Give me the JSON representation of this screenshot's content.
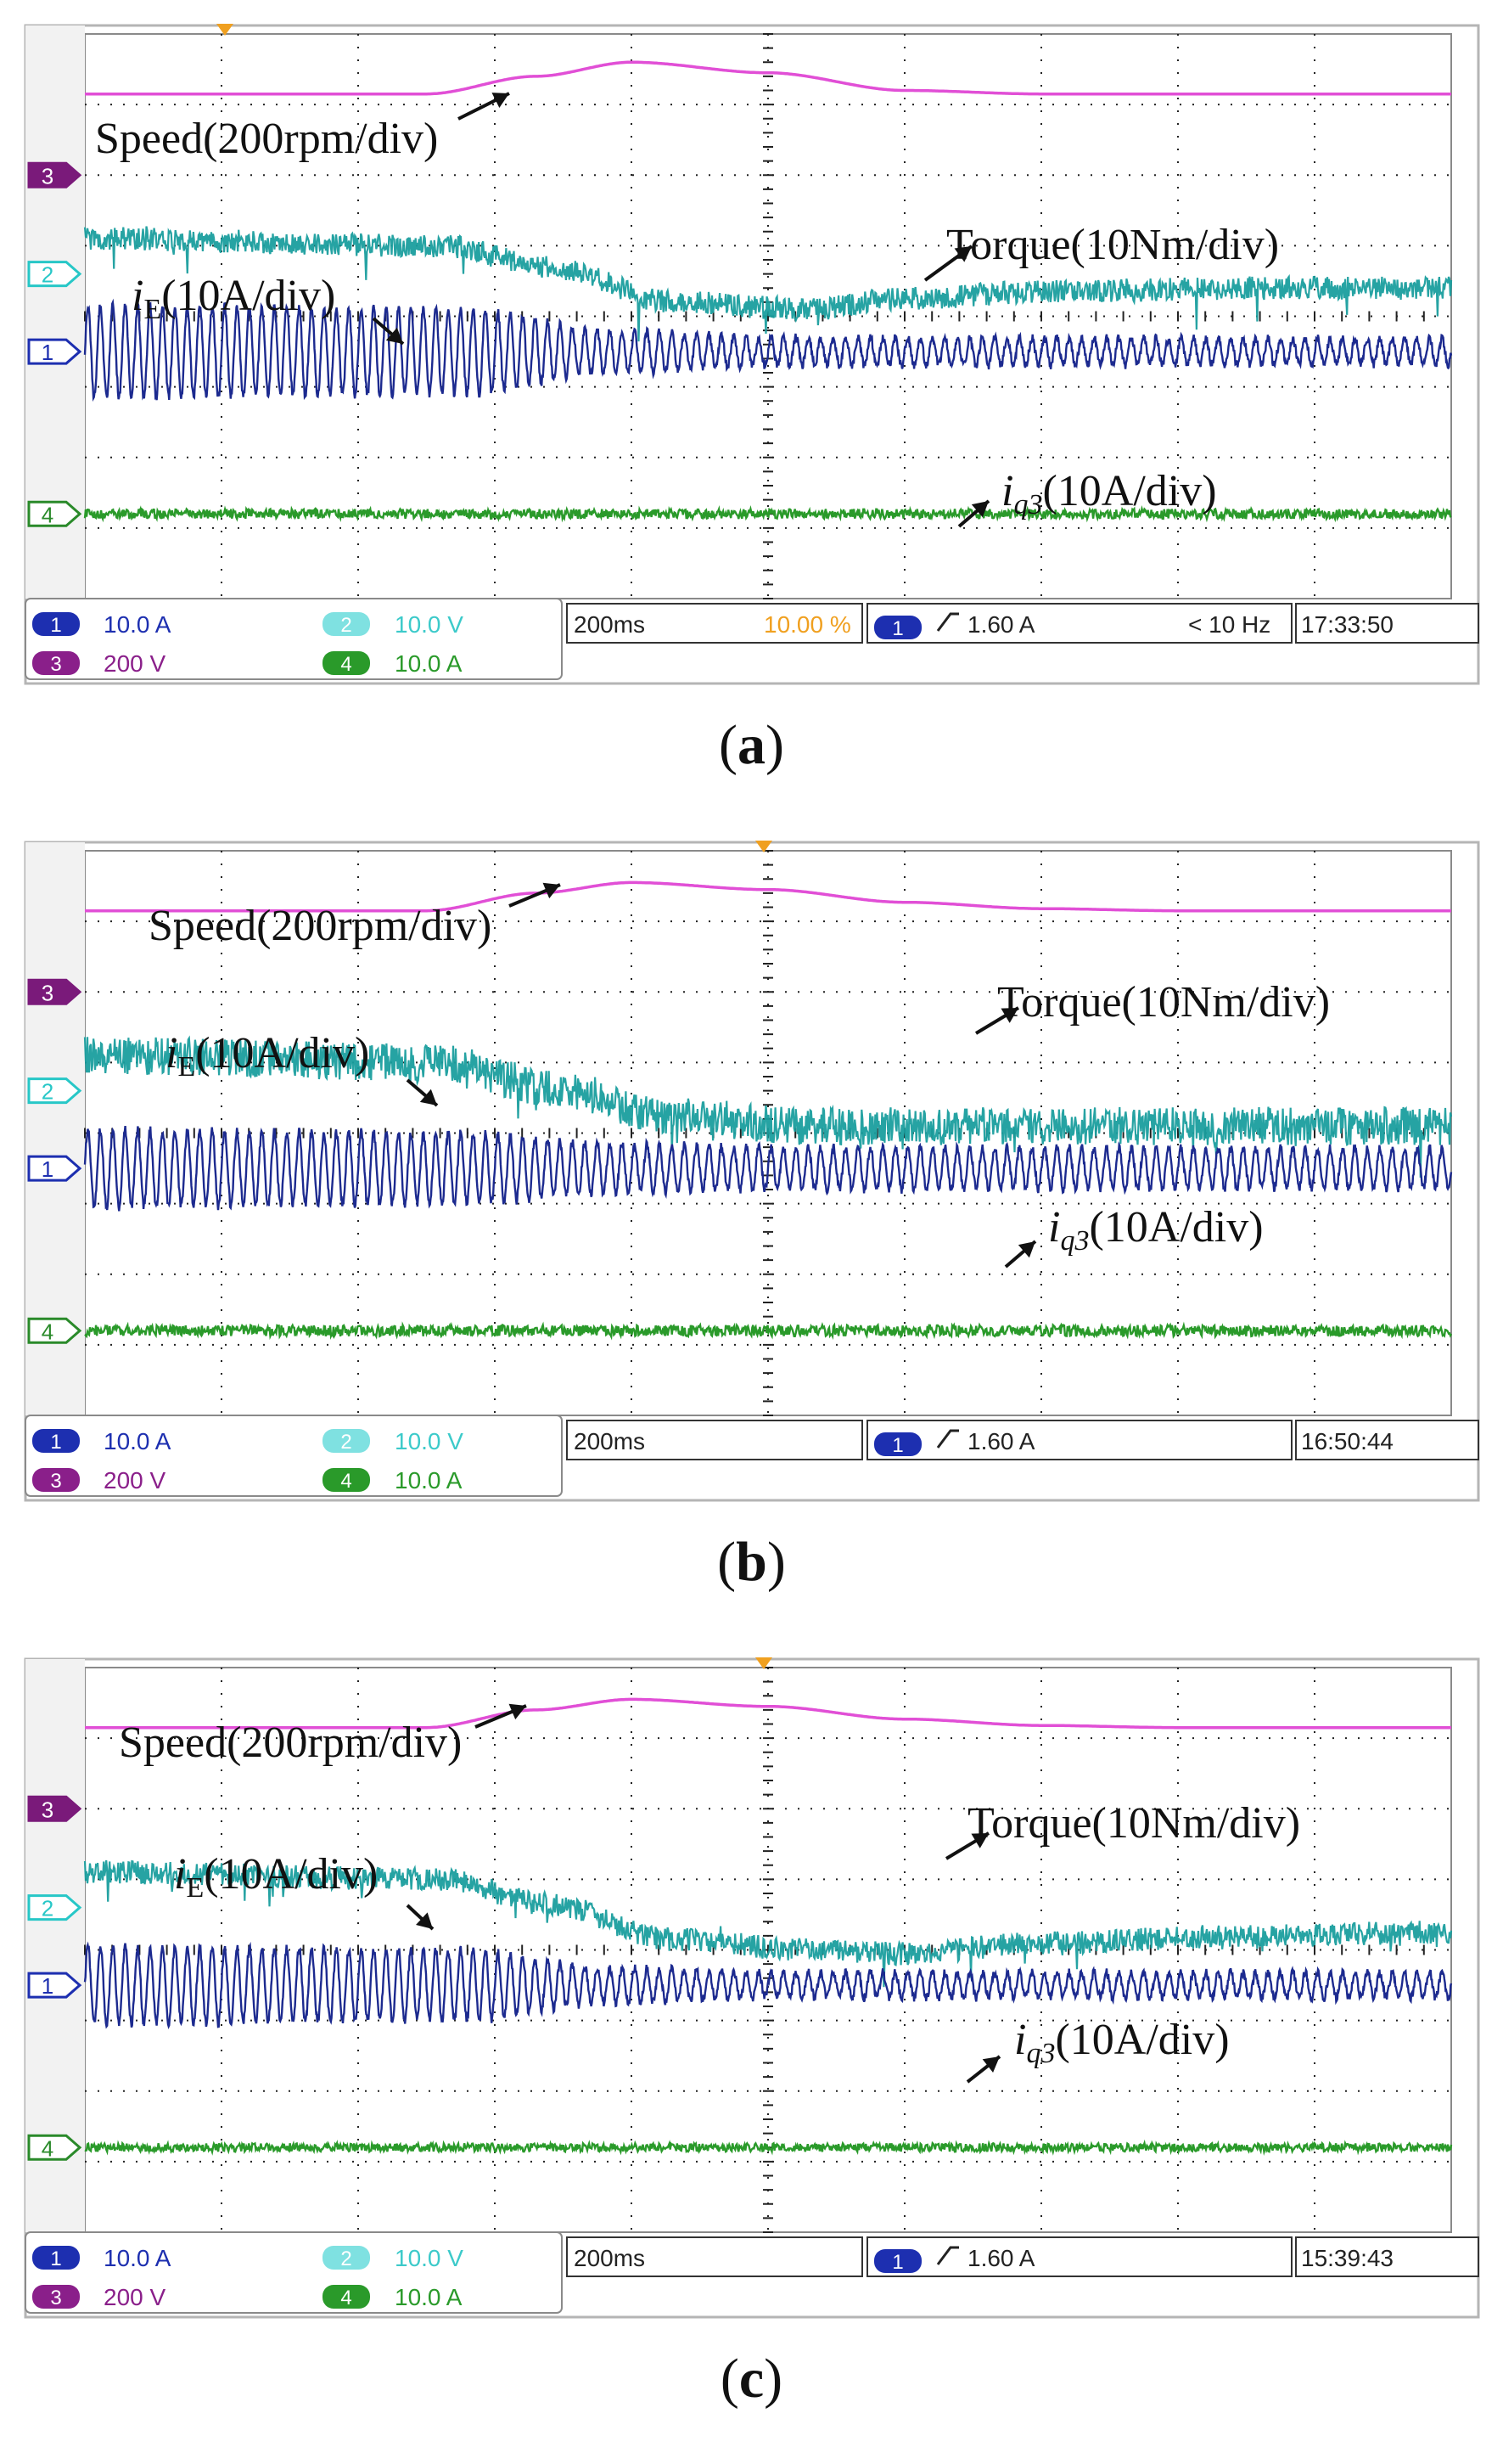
{
  "figure": {
    "panels": [
      {
        "caption_open": "(",
        "caption_letter": "a",
        "caption_close": ")",
        "labels": {
          "speed": "Speed(200rpm/div)",
          "torque": "Torque(10Nm/div)",
          "ie_var": "i",
          "ie_sub": "E",
          "ie_rest": "(10A/div)",
          "iq_var": "i",
          "iq_sub": "q3",
          "iq_rest": "(10A/div)"
        },
        "status": {
          "ch1_num": "1",
          "ch1_scale": "10.0 A",
          "ch2_num": "2",
          "ch2_scale": "10.0 V",
          "ch3_num": "3",
          "ch3_scale": "200 V",
          "ch4_num": "4",
          "ch4_scale": "10.0 A",
          "timebase": "200ms",
          "offset": "10.00 %",
          "trigger_ch": "1",
          "trigger": "1.60 A",
          "freq": "< 10 Hz",
          "clock": "17:33:50"
        }
      },
      {
        "caption_open": "(",
        "caption_letter": "b",
        "caption_close": ")",
        "labels": {
          "speed": "Speed(200rpm/div)",
          "torque": "Torque(10Nm/div)",
          "ie_var": "i",
          "ie_sub": "E",
          "ie_rest": "(10A/div)",
          "iq_var": "i",
          "iq_sub": "q3",
          "iq_rest": "(10A/div)"
        },
        "status": {
          "ch1_num": "1",
          "ch1_scale": "10.0 A",
          "ch2_num": "2",
          "ch2_scale": "10.0 V",
          "ch3_num": "3",
          "ch3_scale": "200 V",
          "ch4_num": "4",
          "ch4_scale": "10.0 A",
          "timebase": "200ms",
          "offset": "",
          "trigger_ch": "1",
          "trigger": "1.60 A",
          "freq": "",
          "clock": "16:50:44"
        }
      },
      {
        "caption_open": "(",
        "caption_letter": "c",
        "caption_close": ")",
        "labels": {
          "speed": "Speed(200rpm/div)",
          "torque": "Torque(10Nm/div)",
          "ie_var": "i",
          "ie_sub": "E",
          "ie_rest": "(10A/div)",
          "iq_var": "i",
          "iq_sub": "q3",
          "iq_rest": "(10A/div)"
        },
        "status": {
          "ch1_num": "1",
          "ch1_scale": "10.0 A",
          "ch2_num": "2",
          "ch2_scale": "10.0 V",
          "ch3_num": "3",
          "ch3_scale": "200 V",
          "ch4_num": "4",
          "ch4_scale": "10.0 A",
          "timebase": "200ms",
          "offset": "",
          "trigger_ch": "1",
          "trigger": "1.60 A",
          "freq": "",
          "clock": "15:39:43"
        }
      }
    ]
  },
  "chart_data": [
    {
      "type": "line",
      "panel": "a",
      "grid": true,
      "x_divisions": 10,
      "y_divisions": 8,
      "timebase_per_div_ms": 200,
      "colors": {
        "speed": "#e14fd6",
        "torque": "#1a9e9e",
        "ie": "#1c2a8f",
        "iq": "#2a9a2a"
      },
      "series": [
        {
          "name": "Speed(200rpm/div)",
          "x_div": [
            0,
            2.5,
            3.3,
            4.0,
            5.0,
            6.0,
            7.0,
            8.0,
            10.0
          ],
          "y_div": [
            0,
            0,
            0.25,
            0.45,
            0.3,
            0.05,
            0,
            0,
            0
          ]
        },
        {
          "name": "Torque(10Nm/div)",
          "x_div": [
            0,
            2.6,
            3.4,
            4.3,
            5.3,
            6.0,
            7.0,
            8.5,
            10.0
          ],
          "y_div": [
            0,
            -0.1,
            -0.4,
            -0.9,
            -1.0,
            -0.85,
            -0.75,
            -0.7,
            -0.7
          ]
        },
        {
          "name": "iE(10A/div)",
          "x_div": [
            0,
            2.8,
            3.8,
            5.0,
            10.0
          ],
          "amplitude_div": [
            0.65,
            0.6,
            0.3,
            0.2,
            0.18
          ]
        },
        {
          "name": "iq3(10A/div)",
          "x_div": [
            0,
            10.0
          ],
          "amplitude_div": [
            0.07,
            0.07
          ]
        }
      ]
    },
    {
      "type": "line",
      "panel": "b",
      "grid": true,
      "x_divisions": 10,
      "y_divisions": 8,
      "timebase_per_div_ms": 200,
      "colors": {
        "speed": "#e14fd6",
        "torque": "#1a9e9e",
        "ie": "#1c2a8f",
        "iq": "#2a9a2a"
      },
      "series": [
        {
          "name": "Speed(200rpm/div)",
          "x_div": [
            0,
            2.5,
            3.3,
            4.0,
            5.0,
            6.0,
            7.0,
            8.0,
            10.0
          ],
          "y_div": [
            0,
            0,
            0.25,
            0.4,
            0.3,
            0.12,
            0.03,
            0,
            0
          ]
        },
        {
          "name": "Torque(10Nm/div)",
          "x_div": [
            0,
            2.6,
            3.4,
            4.3,
            5.3,
            6.0,
            7.0,
            8.5,
            10.0
          ],
          "y_div": [
            0,
            -0.1,
            -0.45,
            -0.85,
            -1.0,
            -1.0,
            -1.0,
            -1.0,
            -1.0
          ]
        },
        {
          "name": "iE(10A/div)",
          "x_div": [
            0,
            2.8,
            3.8,
            5.0,
            10.0
          ],
          "amplitude_div": [
            0.55,
            0.5,
            0.35,
            0.3,
            0.28
          ]
        },
        {
          "name": "iq3(10A/div)",
          "x_div": [
            0,
            10.0
          ],
          "amplitude_div": [
            0.08,
            0.08
          ]
        }
      ]
    },
    {
      "type": "line",
      "panel": "c",
      "grid": true,
      "x_divisions": 10,
      "y_divisions": 8,
      "timebase_per_div_ms": 200,
      "colors": {
        "speed": "#e14fd6",
        "torque": "#1a9e9e",
        "ie": "#1c2a8f",
        "iq": "#2a9a2a"
      },
      "series": [
        {
          "name": "Speed(200rpm/div)",
          "x_div": [
            0,
            2.5,
            3.3,
            4.0,
            5.0,
            6.0,
            7.0,
            8.0,
            10.0
          ],
          "y_div": [
            0,
            0,
            0.25,
            0.4,
            0.3,
            0.12,
            0.03,
            0,
            0
          ]
        },
        {
          "name": "Torque(10Nm/div)",
          "x_div": [
            0,
            2.6,
            3.4,
            4.3,
            5.3,
            6.0,
            7.0,
            8.5,
            10.0
          ],
          "y_div": [
            0,
            -0.1,
            -0.45,
            -0.95,
            -1.1,
            -1.15,
            -1.0,
            -0.9,
            -0.85
          ]
        },
        {
          "name": "iE(10A/div)",
          "x_div": [
            0,
            2.8,
            3.8,
            5.0,
            10.0
          ],
          "amplitude_div": [
            0.55,
            0.5,
            0.25,
            0.18,
            0.18
          ]
        },
        {
          "name": "iq3(10A/div)",
          "x_div": [
            0,
            10.0
          ],
          "amplitude_div": [
            0.06,
            0.06
          ]
        }
      ]
    }
  ]
}
